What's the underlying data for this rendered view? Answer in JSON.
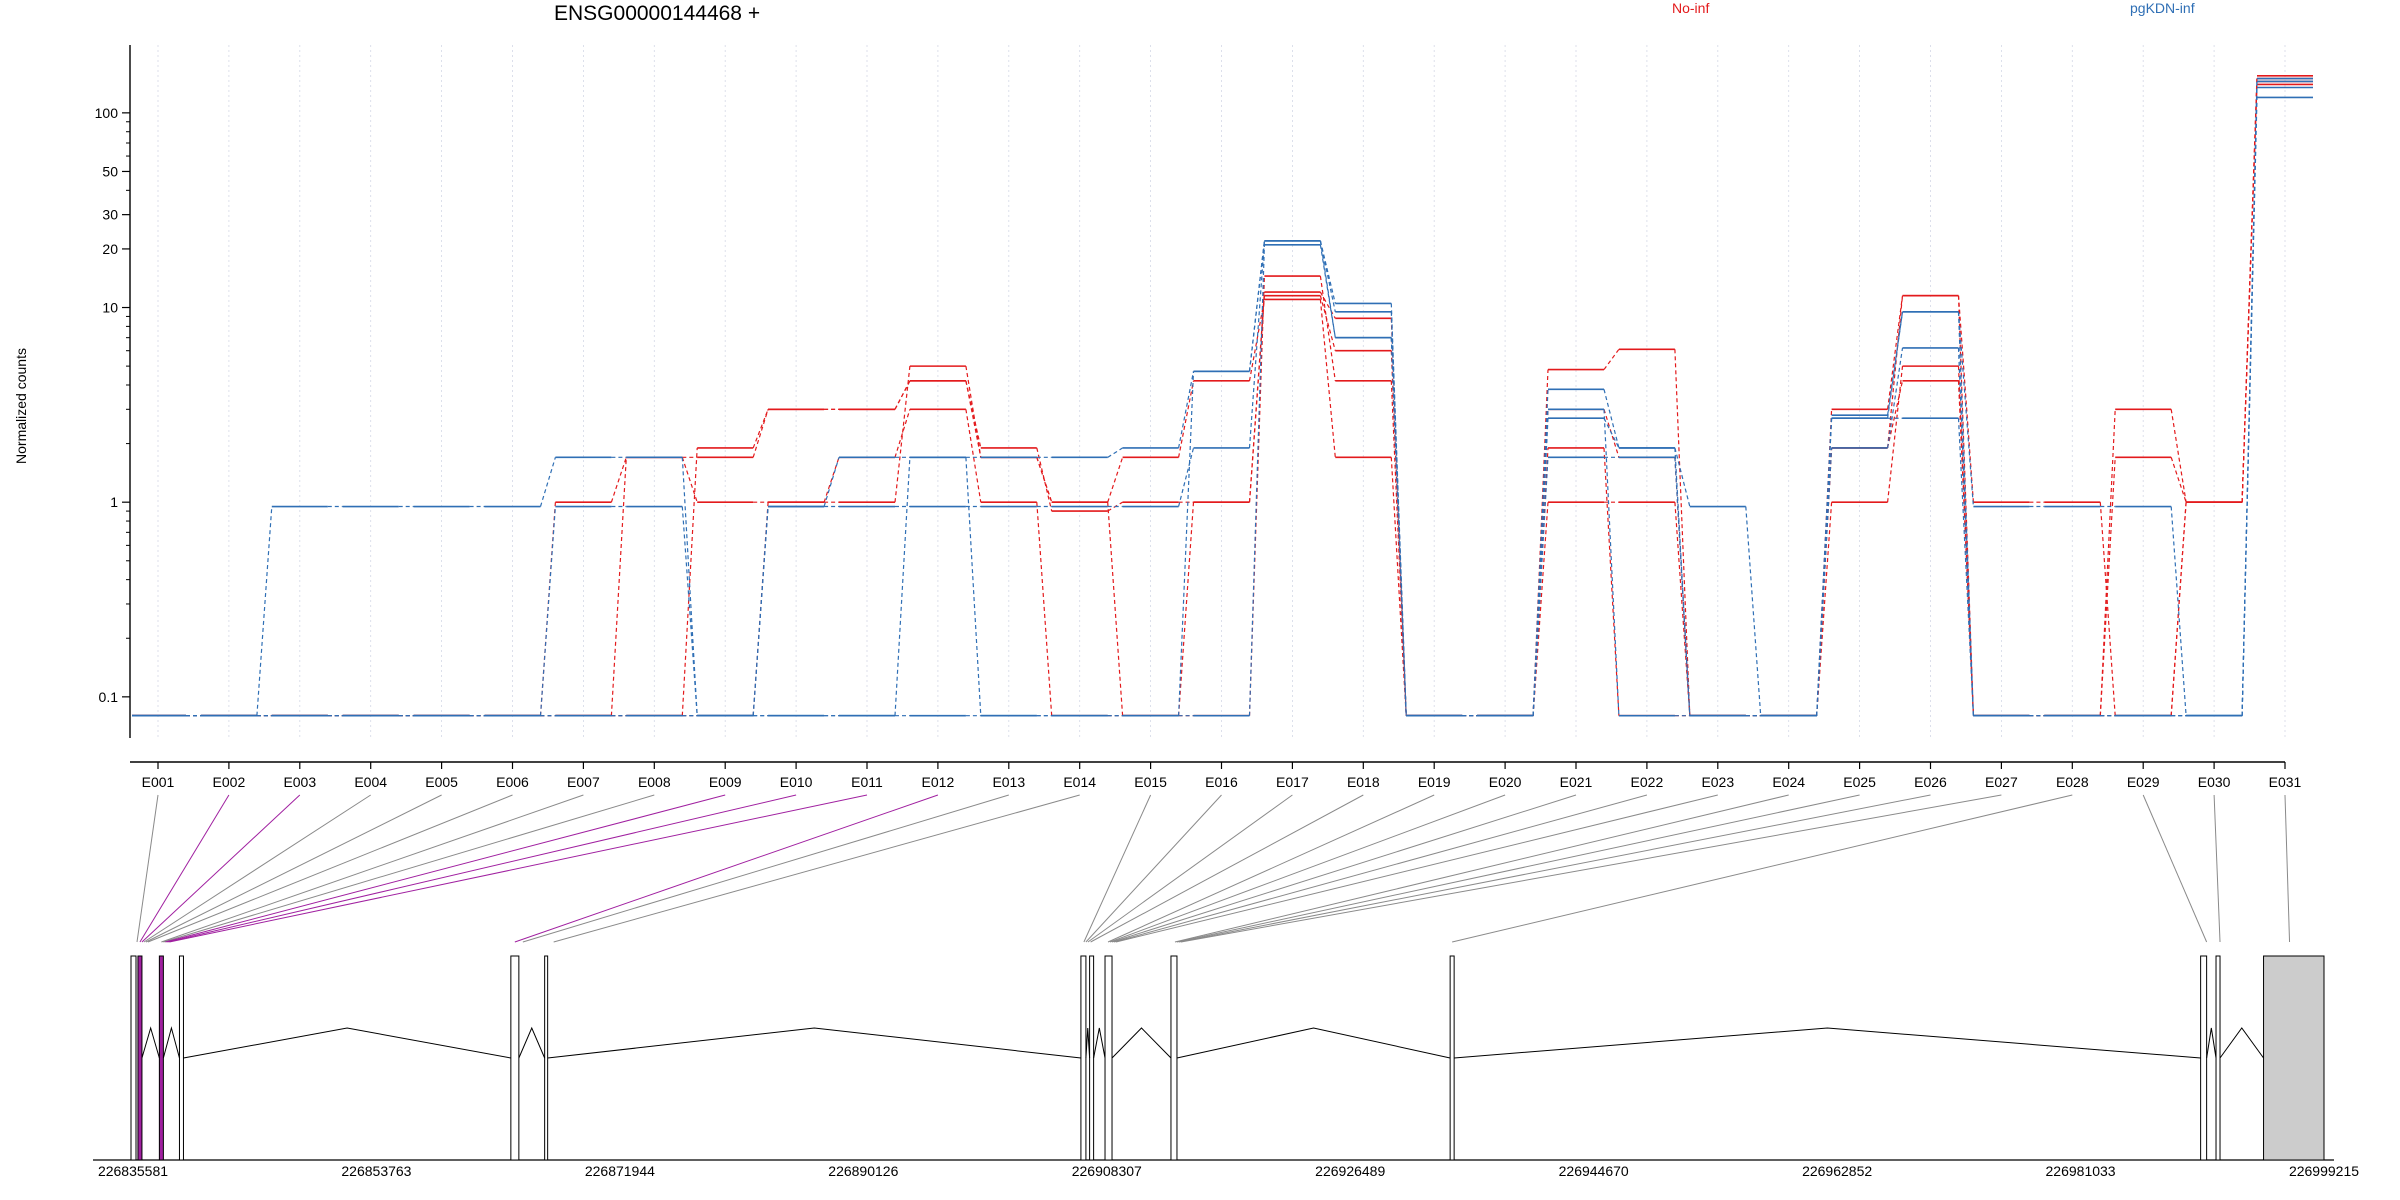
{
  "chart_data": {
    "type": "line",
    "title": "ENSG00000144468 +",
    "ylabel": "Normalized counts",
    "xlabel": "",
    "yscale": "log",
    "ylim": [
      0.07,
      170
    ],
    "y_ticks": [
      0.1,
      1,
      10,
      20,
      30,
      50,
      100
    ],
    "grid": "vertical dotted",
    "legend_position": "top",
    "categories": [
      "E001",
      "E002",
      "E003",
      "E004",
      "E005",
      "E006",
      "E007",
      "E008",
      "E009",
      "E010",
      "E011",
      "E012",
      "E013",
      "E014",
      "E015",
      "E016",
      "E017",
      "E018",
      "E019",
      "E020",
      "E021",
      "E022",
      "E023",
      "E024",
      "E025",
      "E026",
      "E027",
      "E028",
      "E029",
      "E030",
      "E031"
    ],
    "series": [
      {
        "name": "No-inf",
        "group": "No-inf",
        "values": [
          0.08,
          0.08,
          0.08,
          0.08,
          0.08,
          0.08,
          0.08,
          0.08,
          1.9,
          3,
          3,
          4.2,
          1.9,
          0.9,
          1,
          1,
          11.5,
          6,
          0.08,
          0.08,
          4.8,
          6.1,
          0.08,
          0.08,
          3,
          11.5,
          1,
          1,
          0.08,
          1,
          150
        ]
      },
      {
        "name": "No-inf",
        "group": "No-inf",
        "values": [
          0.08,
          0.08,
          0.08,
          0.08,
          0.08,
          0.08,
          1,
          1.7,
          1,
          1,
          1.7,
          3,
          1,
          0.08,
          0.08,
          0.08,
          14.5,
          4.2,
          0.08,
          0.08,
          1.9,
          0.08,
          0.08,
          0.08,
          1,
          5,
          0.08,
          0.08,
          3,
          1,
          140
        ]
      },
      {
        "name": "No-inf",
        "group": "No-inf",
        "values": [
          0.08,
          0.08,
          0.08,
          0.08,
          0.08,
          0.08,
          0.08,
          0.08,
          0.08,
          1,
          1,
          5,
          1.7,
          1,
          1.7,
          4.2,
          11,
          1.7,
          0.08,
          0.08,
          1,
          1,
          0.08,
          0.08,
          1.9,
          4.2,
          0.08,
          0.08,
          1.7,
          1,
          145
        ]
      },
      {
        "name": "No-inf",
        "group": "No-inf",
        "values": [
          0.08,
          0.08,
          0.08,
          0.08,
          0.08,
          0.08,
          0.08,
          1.7,
          1.7,
          3,
          3,
          4.2,
          1.7,
          1,
          0.08,
          1,
          12,
          8.8,
          0.08,
          0.08,
          3,
          1.7,
          0.08,
          0.08,
          1.9,
          11.5,
          0.08,
          0.08,
          0.08,
          1,
          155
        ]
      },
      {
        "name": "pgKDN-inf",
        "group": "pgKDN-inf",
        "values": [
          0.08,
          0.08,
          0.95,
          0.95,
          0.95,
          0.95,
          1.7,
          1.7,
          0.08,
          0.95,
          1.7,
          1.7,
          1.7,
          1.7,
          1.9,
          4.7,
          22,
          10.5,
          0.08,
          0.08,
          3.8,
          1.9,
          0.95,
          0.08,
          2.8,
          9.5,
          0.95,
          0.95,
          0.95,
          0.08,
          135
        ]
      },
      {
        "name": "pgKDN-inf",
        "group": "pgKDN-inf",
        "values": [
          0.08,
          0.08,
          0.08,
          0.08,
          0.08,
          0.08,
          0.95,
          0.95,
          0.08,
          0.95,
          0.95,
          0.95,
          0.95,
          0.95,
          0.95,
          1.9,
          22,
          9.5,
          0.08,
          0.08,
          1.7,
          1.7,
          0.08,
          0.08,
          1.9,
          6.2,
          0.08,
          0.08,
          0.08,
          0.08,
          120
        ]
      },
      {
        "name": "pgKDN-inf",
        "group": "pgKDN-inf",
        "values": [
          0.08,
          0.08,
          0.08,
          0.08,
          0.08,
          0.08,
          0.08,
          0.08,
          0.08,
          0.08,
          0.08,
          1.7,
          0.08,
          0.08,
          0.08,
          0.08,
          21,
          7,
          0.08,
          0.08,
          2.7,
          1.9,
          0.08,
          0.08,
          2.7,
          2.7,
          0.08,
          0.08,
          0.08,
          0.08,
          150
        ]
      },
      {
        "name": "pgKDN-inf",
        "group": "pgKDN-inf",
        "values": [
          0.08,
          0.08,
          0.08,
          0.08,
          0.08,
          0.08,
          0.08,
          0.08,
          0.08,
          0.08,
          0.08,
          0.08,
          0.08,
          0.08,
          0.08,
          4.7,
          22,
          7,
          0.08,
          0.08,
          3,
          0.08,
          0.08,
          0.08,
          2.7,
          9.5,
          0.08,
          0.08,
          0.08,
          0.08,
          145
        ]
      }
    ],
    "legend": [
      {
        "name": "No-inf",
        "color": "#e31a1c"
      },
      {
        "name": "pgKDN-inf",
        "color": "#2f6fb5"
      }
    ],
    "colors": {
      "No-inf": "#e31a1c",
      "pgKDN-inf": "#2f6fb5",
      "highlight": "#a020a0",
      "terminal_exon": "#cccccc"
    },
    "gene_model": {
      "genomic_range": [
        226835581,
        226999215
      ],
      "coordinate_labels": [
        "226835581",
        "226853763",
        "226871944",
        "226890126",
        "226908307",
        "226926489",
        "226944670",
        "226962852",
        "226981033",
        "226999215"
      ],
      "exon_positions": [
        226835581,
        226836100,
        226837700,
        226839200,
        226864100,
        226866400,
        226906600,
        226907100,
        226908400,
        226913400,
        226934100,
        226990300,
        226991300,
        226994700,
        226999215
      ],
      "highlighted_bins": [
        "E002",
        "E003",
        "E009",
        "E010",
        "E011",
        "E012"
      ]
    }
  }
}
